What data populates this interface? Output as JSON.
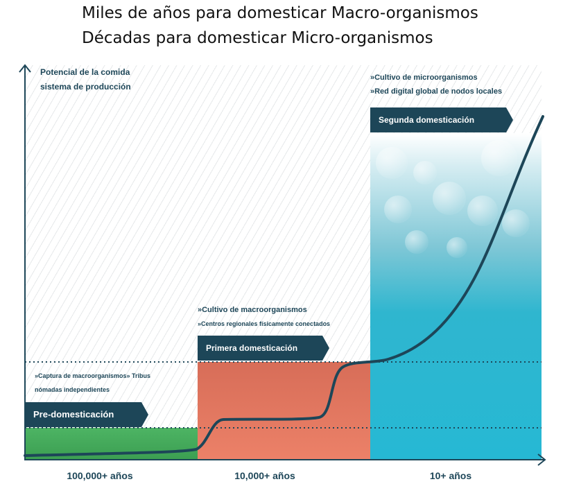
{
  "title": {
    "line1": "Miles de años para domesticar Macro-organismos",
    "line2": "Décadas para domesticar Micro-organismos"
  },
  "axis": {
    "y_label_line1": "Potencial de la comida",
    "y_label_line2": "sistema de producción"
  },
  "stages": {
    "pre": {
      "banner": "Pre-domesticación",
      "note_line1": "»Captura de macroorganismos» Tribus",
      "note_line2": "nómadas independientes",
      "era": "100,000+ años",
      "color": "#43a95a"
    },
    "primera": {
      "banner": "Primera domesticación",
      "note_line1": "»Cultivo de macroorganismos",
      "note_line2": "»Centros regionales físicamente conectados",
      "era": "10,000+ años",
      "color": "#e37a64"
    },
    "segunda": {
      "banner": "Segunda domesticación",
      "note_line1": "»Cultivo de microorganismos",
      "note_line2": "»Red digital global de nodos locales",
      "era": "10+ años",
      "color": "#26b8d4"
    }
  },
  "colors": {
    "dark_navy": "#1d4658",
    "curve": "#1d4658"
  }
}
